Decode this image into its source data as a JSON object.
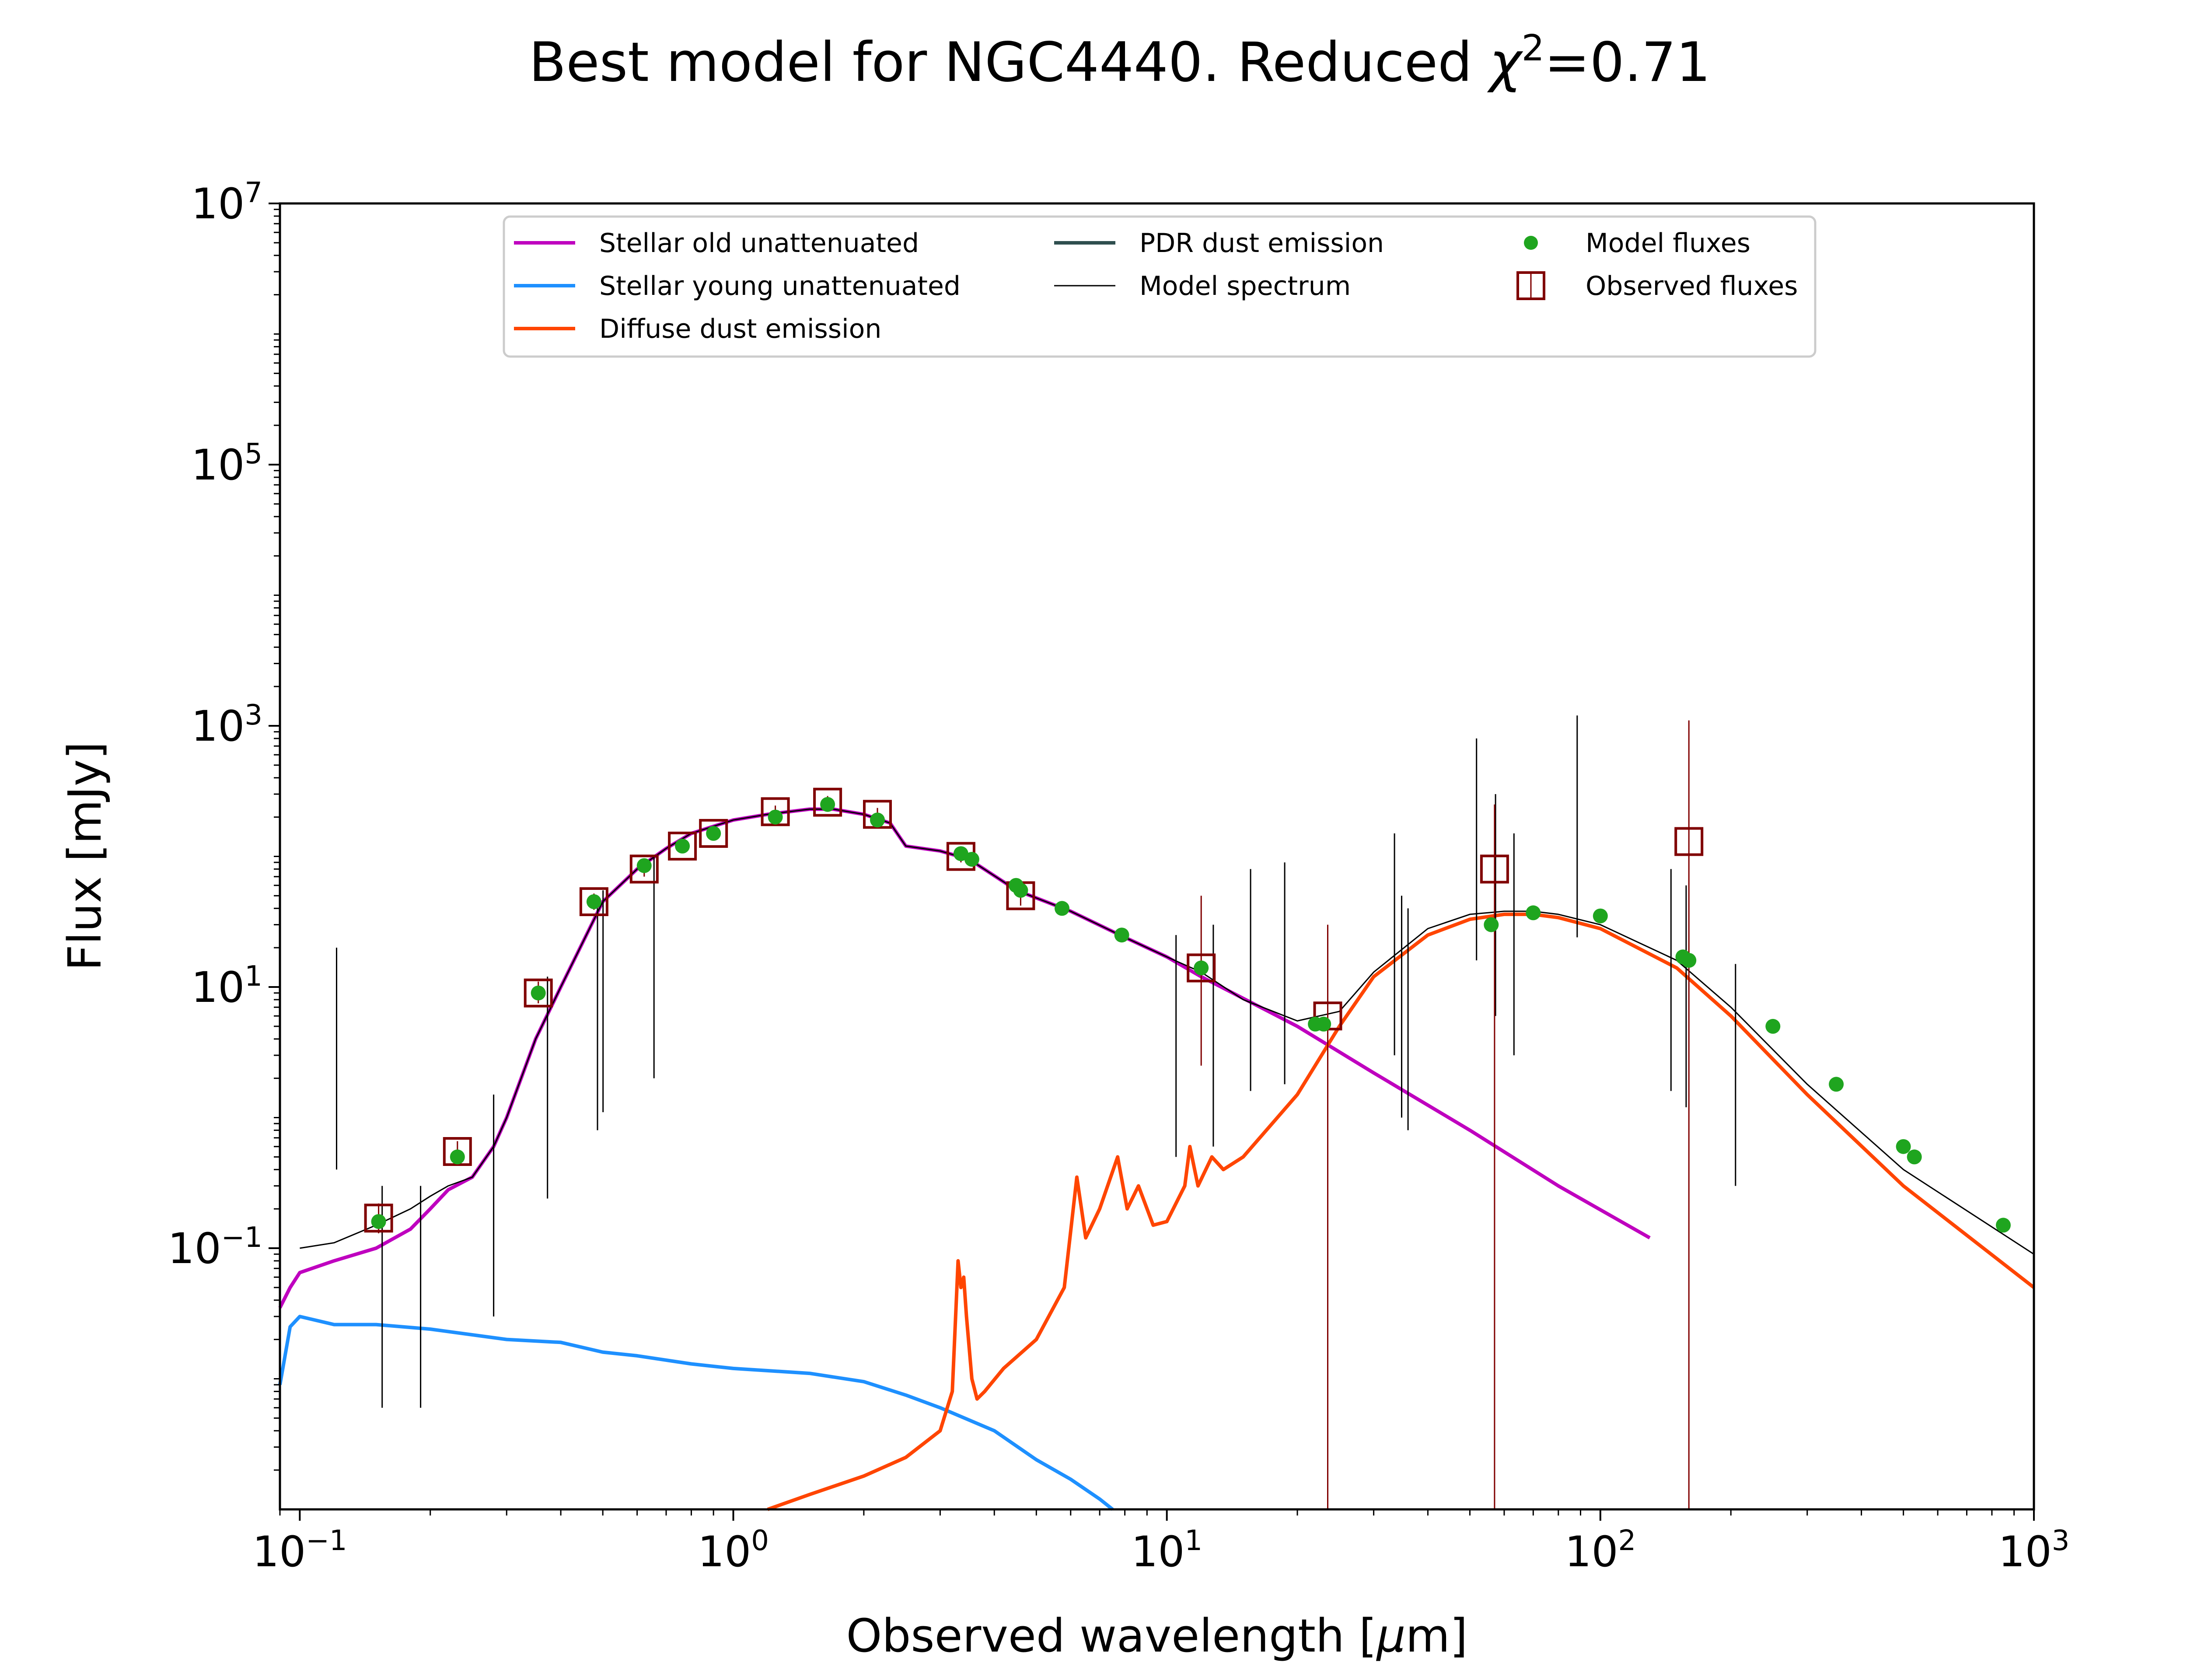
{
  "chart_data": {
    "type": "line",
    "title_prefix": "Best model for NGC4440. Reduced ",
    "title_chi": "χ",
    "title_exp": "2",
    "title_suffix": "=0.71",
    "xlabel_prefix": "Observed wavelength [",
    "xlabel_mu": "μ",
    "xlabel_suffix": "m]",
    "ylabel": "Flux [mJy]",
    "xscale": "log",
    "yscale": "log",
    "xlim": [
      0.09,
      1000
    ],
    "ylim": [
      0.001,
      10000000
    ],
    "x_ticks": [
      {
        "value": 0.1,
        "base": "10",
        "exp": "−1"
      },
      {
        "value": 1,
        "base": "10",
        "exp": "0"
      },
      {
        "value": 10,
        "base": "10",
        "exp": "1"
      },
      {
        "value": 100,
        "base": "10",
        "exp": "2"
      },
      {
        "value": 1000,
        "base": "10",
        "exp": "3"
      }
    ],
    "y_ticks": [
      {
        "value": 0.1,
        "base": "10",
        "exp": "−1"
      },
      {
        "value": 10,
        "base": "10",
        "exp": "1"
      },
      {
        "value": 1000,
        "base": "10",
        "exp": "3"
      },
      {
        "value": 100000,
        "base": "10",
        "exp": "5"
      },
      {
        "value": 10000000,
        "base": "10",
        "exp": "7"
      }
    ],
    "legend_position": "top-center",
    "legend": [
      {
        "label": "Stellar old unattenuated",
        "kind": "line",
        "color": "#bf00bf",
        "width": 8
      },
      {
        "label": "Stellar young unattenuated",
        "kind": "line",
        "color": "#1e90ff",
        "width": 8
      },
      {
        "label": "Diffuse dust emission",
        "kind": "line",
        "color": "#ff4500",
        "width": 8
      },
      {
        "label": "PDR dust emission",
        "kind": "line",
        "color": "#2f4f4f",
        "width": 8
      },
      {
        "label": "Model spectrum",
        "kind": "line",
        "color": "#000000",
        "width": 3
      },
      {
        "label": "Model fluxes",
        "kind": "dot",
        "color": "#1fa51f"
      },
      {
        "label": "Observed fluxes",
        "kind": "square",
        "color": "#800000"
      }
    ],
    "series": [
      {
        "name": "Stellar old unattenuated",
        "color": "#bf00bf",
        "x": [
          0.09,
          0.095,
          0.1,
          0.12,
          0.15,
          0.18,
          0.2,
          0.22,
          0.25,
          0.28,
          0.3,
          0.35,
          0.4,
          0.5,
          0.6,
          0.7,
          0.8,
          1.0,
          1.2,
          1.5,
          1.7,
          2.0,
          2.3,
          2.5,
          3.0,
          3.5,
          4.5,
          6,
          8,
          10,
          12,
          20,
          30,
          50,
          80,
          130
        ],
        "y": [
          0.035,
          0.05,
          0.065,
          0.08,
          0.1,
          0.14,
          0.2,
          0.28,
          0.35,
          0.6,
          1.0,
          4.0,
          10,
          45,
          80,
          115,
          150,
          190,
          210,
          230,
          230,
          210,
          180,
          120,
          110,
          95,
          55,
          38,
          24,
          17,
          12,
          5.0,
          2.2,
          0.8,
          0.3,
          0.12
        ]
      },
      {
        "name": "Stellar young unattenuated",
        "color": "#1e90ff",
        "x": [
          0.09,
          0.095,
          0.1,
          0.12,
          0.15,
          0.2,
          0.3,
          0.4,
          0.5,
          0.6,
          0.8,
          1.0,
          1.5,
          2.0,
          2.5,
          3.0,
          4.0,
          5.0,
          6.0,
          7.0,
          7.5
        ],
        "y": [
          0.009,
          0.025,
          0.03,
          0.026,
          0.026,
          0.024,
          0.02,
          0.019,
          0.016,
          0.015,
          0.013,
          0.012,
          0.011,
          0.0095,
          0.0075,
          0.006,
          0.004,
          0.0024,
          0.0017,
          0.0012,
          0.001
        ]
      },
      {
        "name": "Diffuse dust emission",
        "color": "#ff4500",
        "x": [
          1.2,
          1.5,
          2.0,
          2.5,
          3.0,
          3.2,
          3.3,
          3.35,
          3.4,
          3.45,
          3.55,
          3.65,
          3.8,
          4.2,
          5,
          5.8,
          6.2,
          6.5,
          7.0,
          7.7,
          8.1,
          8.6,
          9.3,
          10.0,
          11.0,
          11.3,
          11.8,
          12.7,
          13.5,
          15,
          20,
          25,
          30,
          40,
          50,
          60,
          70,
          80,
          100,
          150,
          200,
          300,
          500,
          1000
        ],
        "y": [
          0.001,
          0.0013,
          0.0018,
          0.0025,
          0.004,
          0.008,
          0.08,
          0.05,
          0.06,
          0.03,
          0.01,
          0.007,
          0.008,
          0.012,
          0.02,
          0.05,
          0.35,
          0.12,
          0.2,
          0.5,
          0.2,
          0.3,
          0.15,
          0.16,
          0.3,
          0.6,
          0.3,
          0.5,
          0.4,
          0.5,
          1.5,
          5.0,
          12,
          25,
          33,
          36,
          36,
          34,
          28,
          14,
          6,
          1.5,
          0.3,
          0.05
        ]
      },
      {
        "name": "Model spectrum",
        "color": "#000000",
        "x": [
          0.1,
          0.12,
          0.15,
          0.18,
          0.2,
          0.22,
          0.25,
          0.28,
          0.3,
          0.35,
          0.4,
          0.5,
          0.6,
          0.7,
          0.8,
          1.0,
          1.2,
          1.5,
          1.7,
          2.0,
          2.3,
          2.5,
          3.0,
          3.5,
          4.5,
          6,
          8,
          10,
          12,
          15,
          20,
          25,
          30,
          40,
          50,
          60,
          70,
          80,
          100,
          150,
          200,
          300,
          500,
          1000
        ],
        "y": [
          0.1,
          0.11,
          0.15,
          0.2,
          0.25,
          0.3,
          0.35,
          0.6,
          1.0,
          4.0,
          10,
          45,
          80,
          115,
          150,
          190,
          210,
          230,
          230,
          210,
          180,
          120,
          110,
          95,
          55,
          38,
          24,
          17,
          13,
          8,
          5.5,
          6.5,
          13,
          28,
          36,
          38,
          38,
          36,
          30,
          16,
          7,
          1.8,
          0.4,
          0.09
        ]
      }
    ],
    "spectral_lines": [
      {
        "x": 0.1216,
        "y_top": 20
      },
      {
        "x": 0.1549,
        "y_top": 0.3
      },
      {
        "x": 0.19,
        "y_top": 0.3
      },
      {
        "x": 0.28,
        "y_top": 1.5
      },
      {
        "x": 0.3727,
        "y_top": 12
      },
      {
        "x": 0.4861,
        "y_top": 40
      },
      {
        "x": 0.5007,
        "y_top": 55
      },
      {
        "x": 0.6563,
        "y_top": 100
      },
      {
        "x": 10.5,
        "y_top": 25
      },
      {
        "x": 12.8,
        "y_top": 30
      },
      {
        "x": 15.6,
        "y_top": 80
      },
      {
        "x": 18.7,
        "y_top": 90
      },
      {
        "x": 33.5,
        "y_top": 150
      },
      {
        "x": 34.8,
        "y_top": 50
      },
      {
        "x": 36,
        "y_top": 40
      },
      {
        "x": 51.8,
        "y_top": 800
      },
      {
        "x": 57.3,
        "y_top": 300
      },
      {
        "x": 63.2,
        "y_top": 150
      },
      {
        "x": 88.4,
        "y_top": 1200
      },
      {
        "x": 145.5,
        "y_top": 80
      },
      {
        "x": 157.7,
        "y_top": 60
      },
      {
        "x": 205,
        "y_top": 15
      }
    ],
    "model_fluxes": {
      "x": [
        0.152,
        0.231,
        0.355,
        0.477,
        0.623,
        0.763,
        0.9,
        1.25,
        1.65,
        2.15,
        3.35,
        3.55,
        4.49,
        4.6,
        5.73,
        7.87,
        12.0,
        22.0,
        23.0,
        56.0,
        70.0,
        100.0,
        155.0,
        160.0,
        250.0,
        350.0,
        500.0,
        530.0,
        850.0
      ],
      "y": [
        0.16,
        0.5,
        9.0,
        45,
        85,
        120,
        150,
        200,
        250,
        190,
        105,
        95,
        60,
        55,
        40,
        25,
        14,
        5.2,
        5.2,
        30,
        37,
        35,
        17,
        16,
        5.0,
        1.8,
        0.6,
        0.5,
        0.15
      ]
    },
    "observed_fluxes": {
      "x": [
        0.152,
        0.231,
        0.355,
        0.477,
        0.623,
        0.763,
        0.9,
        1.25,
        1.65,
        2.15,
        3.35,
        4.6,
        12.0,
        23.5,
        57.0,
        160.0
      ],
      "y": [
        0.17,
        0.55,
        9.0,
        45,
        80,
        120,
        150,
        220,
        260,
        210,
        100,
        50,
        14,
        6.0,
        80,
        130
      ],
      "err_low": [
        0.13,
        0.44,
        7.5,
        39,
        70,
        106,
        133,
        195,
        230,
        185,
        90,
        42,
        2.5,
        0.001,
        0.001,
        0.001
      ],
      "err_high": [
        0.22,
        0.66,
        11,
        52,
        92,
        134,
        168,
        245,
        290,
        235,
        112,
        60,
        50,
        30,
        250,
        1100
      ]
    }
  }
}
